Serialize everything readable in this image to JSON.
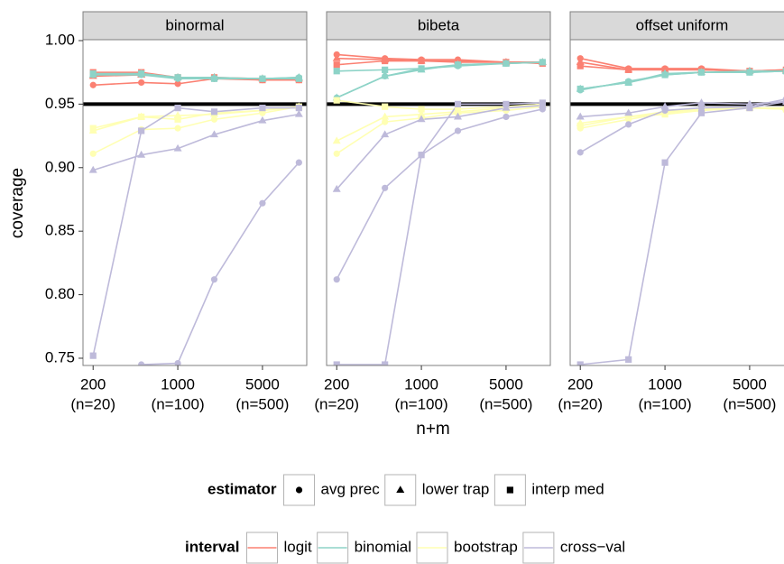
{
  "chart_data": {
    "type": "line",
    "x_label": "n+m",
    "y_label": "coverage",
    "log_x": true,
    "reference_line": 0.95,
    "x": [
      200,
      500,
      1000,
      2000,
      5000,
      10000
    ],
    "xlim": [
      165,
      11600
    ],
    "xticks": [
      {
        "value": 200,
        "label": "200",
        "sublabel": "(n=20)"
      },
      {
        "value": 1000,
        "label": "1000",
        "sublabel": "(n=100)"
      },
      {
        "value": 5000,
        "label": "5000",
        "sublabel": "(n=500)"
      }
    ],
    "ylim": [
      0.7443,
      1.0007
    ],
    "yticks": [
      0.75,
      {
        "value": 0.8,
        "label": "0.80"
      },
      0.85,
      {
        "value": 0.9,
        "label": "0.90"
      },
      0.95,
      {
        "value": 1,
        "label": "1.00"
      }
    ],
    "estimator_legend": {
      "title": "estimator",
      "names": [
        "avg prec",
        "lower trap",
        "interp med"
      ],
      "shapes": [
        "circle",
        "triangle",
        "square"
      ]
    },
    "interval_legend": {
      "title": "interval",
      "names": [
        "logit",
        "binomial",
        "bootstrap",
        "cross−val"
      ],
      "colors": [
        "#fb8072",
        "#8dd3c7",
        "#ffffb3",
        "#bebada"
      ]
    },
    "panels": [
      {
        "title": "binormal",
        "series": [
          {
            "interval": "logit",
            "estimator": "avg prec",
            "values": [
              0.965,
              0.967,
              0.966,
              0.97,
              0.969,
              0.969
            ]
          },
          {
            "interval": "logit",
            "estimator": "lower trap",
            "values": [
              0.972,
              0.973,
              0.971,
              0.971,
              0.97,
              0.97
            ]
          },
          {
            "interval": "logit",
            "estimator": "interp med",
            "values": [
              0.975,
              0.975,
              0.971,
              0.971,
              0.969,
              0.969
            ]
          },
          {
            "interval": "binomial",
            "estimator": "avg prec",
            "values": [
              0.973,
              0.973,
              0.97,
              0.97,
              0.97,
              0.971
            ]
          },
          {
            "interval": "binomial",
            "estimator": "lower trap",
            "values": [
              0.973,
              0.974,
              0.971,
              0.971,
              0.97,
              0.971
            ]
          },
          {
            "interval": "binomial",
            "estimator": "interp med",
            "values": [
              0.974,
              0.974,
              0.971,
              0.97,
              0.97,
              0.97
            ]
          },
          {
            "interval": "bootstrap",
            "estimator": "avg prec",
            "values": [
              0.911,
              0.93,
              0.931,
              0.938,
              0.943,
              0.948
            ]
          },
          {
            "interval": "bootstrap",
            "estimator": "lower trap",
            "values": [
              0.929,
              0.94,
              0.941,
              0.942,
              0.945,
              0.948
            ]
          },
          {
            "interval": "bootstrap",
            "estimator": "interp med",
            "values": [
              0.931,
              0.94,
              0.938,
              0.943,
              0.945,
              0.948
            ]
          },
          {
            "interval": "cross−val",
            "estimator": "avg prec",
            "values": [
              null,
              0.745,
              0.746,
              0.812,
              0.872,
              0.904
            ]
          },
          {
            "interval": "cross−val",
            "estimator": "lower trap",
            "values": [
              0.898,
              0.91,
              0.915,
              0.926,
              0.937,
              0.942
            ]
          },
          {
            "interval": "cross−val",
            "estimator": "interp med",
            "values": [
              0.752,
              0.929,
              0.947,
              0.944,
              0.947,
              0.947
            ]
          }
        ]
      },
      {
        "title": "bibeta",
        "series": [
          {
            "interval": "logit",
            "estimator": "avg prec",
            "values": [
              0.989,
              0.986,
              0.985,
              0.985,
              0.983,
              0.983
            ]
          },
          {
            "interval": "logit",
            "estimator": "lower trap",
            "values": [
              0.986,
              0.985,
              0.984,
              0.984,
              0.983,
              0.983
            ]
          },
          {
            "interval": "logit",
            "estimator": "interp med",
            "values": [
              0.981,
              0.984,
              0.984,
              0.983,
              0.983,
              0.982
            ]
          },
          {
            "interval": "binomial",
            "estimator": "avg prec",
            "values": [
              0.955,
              0.972,
              0.978,
              0.98,
              0.982,
              0.983
            ]
          },
          {
            "interval": "binomial",
            "estimator": "lower trap",
            "values": [
              0.955,
              0.972,
              0.977,
              0.981,
              0.982,
              0.983
            ]
          },
          {
            "interval": "binomial",
            "estimator": "interp med",
            "values": [
              0.976,
              0.977,
              0.978,
              0.981,
              0.982,
              0.983
            ]
          },
          {
            "interval": "bootstrap",
            "estimator": "avg prec",
            "values": [
              0.911,
              0.936,
              0.939,
              0.943,
              0.945,
              0.948
            ]
          },
          {
            "interval": "bootstrap",
            "estimator": "lower trap",
            "values": [
              0.921,
              0.94,
              0.942,
              0.944,
              0.947,
              0.95
            ]
          },
          {
            "interval": "bootstrap",
            "estimator": "interp med",
            "values": [
              0.953,
              0.948,
              0.946,
              0.946,
              0.948,
              0.95
            ]
          },
          {
            "interval": "cross−val",
            "estimator": "avg prec",
            "values": [
              0.812,
              0.884,
              0.91,
              0.929,
              0.94,
              0.946
            ]
          },
          {
            "interval": "cross−val",
            "estimator": "lower trap",
            "values": [
              0.883,
              0.926,
              0.938,
              0.94,
              0.947,
              0.949
            ]
          },
          {
            "interval": "cross−val",
            "estimator": "interp med",
            "values": [
              0.745,
              0.745,
              0.91,
              0.95,
              0.95,
              0.951
            ]
          }
        ]
      },
      {
        "title": "offset uniform",
        "series": [
          {
            "interval": "logit",
            "estimator": "avg prec",
            "values": [
              0.986,
              0.978,
              0.978,
              0.978,
              0.976,
              0.976
            ]
          },
          {
            "interval": "logit",
            "estimator": "lower trap",
            "values": [
              0.983,
              0.977,
              0.977,
              0.977,
              0.976,
              0.977
            ]
          },
          {
            "interval": "logit",
            "estimator": "interp med",
            "values": [
              0.98,
              0.977,
              0.977,
              0.977,
              0.976,
              0.977
            ]
          },
          {
            "interval": "binomial",
            "estimator": "avg prec",
            "values": [
              0.961,
              0.968,
              0.973,
              0.975,
              0.975,
              0.976
            ]
          },
          {
            "interval": "binomial",
            "estimator": "lower trap",
            "values": [
              0.962,
              0.967,
              0.974,
              0.975,
              0.976,
              0.976
            ]
          },
          {
            "interval": "binomial",
            "estimator": "interp med",
            "values": [
              0.962,
              0.967,
              0.973,
              0.975,
              0.975,
              0.976
            ]
          },
          {
            "interval": "bootstrap",
            "estimator": "avg prec",
            "values": [
              0.931,
              0.938,
              0.943,
              0.946,
              0.947,
              0.946
            ]
          },
          {
            "interval": "bootstrap",
            "estimator": "lower trap",
            "values": [
              0.935,
              0.94,
              0.944,
              0.946,
              0.947,
              0.947
            ]
          },
          {
            "interval": "bootstrap",
            "estimator": "interp med",
            "values": [
              0.933,
              0.94,
              0.942,
              0.945,
              0.947,
              0.946
            ]
          },
          {
            "interval": "cross−val",
            "estimator": "avg prec",
            "values": [
              0.912,
              0.934,
              0.945,
              0.947,
              0.948,
              0.954
            ]
          },
          {
            "interval": "cross−val",
            "estimator": "lower trap",
            "values": [
              0.94,
              0.943,
              0.948,
              0.951,
              0.95,
              0.952
            ]
          },
          {
            "interval": "cross−val",
            "estimator": "interp med",
            "values": [
              0.745,
              0.749,
              0.904,
              0.943,
              0.947,
              0.952
            ]
          }
        ]
      }
    ]
  }
}
